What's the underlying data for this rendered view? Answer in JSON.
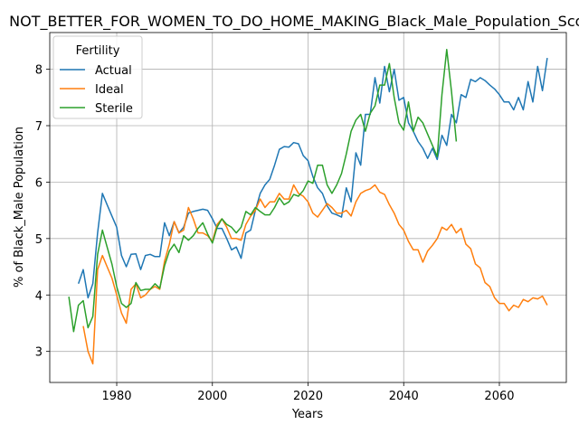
{
  "chart_data": {
    "type": "line",
    "title": "NOT_BETTER_FOR_WOMEN_TO_DO_HOME_MAKING_Black_Male_Population_Scores",
    "xlabel": "Years",
    "ylabel": "% of Black_Male Population",
    "xlim": [
      1966,
      2074
    ],
    "ylim": [
      2.45,
      8.65
    ],
    "xticks": [
      1980,
      2000,
      2020,
      2040,
      2060
    ],
    "yticks": [
      3,
      4,
      5,
      6,
      7,
      8
    ],
    "grid": true,
    "legend": {
      "title": "Fertility",
      "placement": "top-left"
    },
    "series": [
      {
        "name": "Actual",
        "color": "#1f77b4",
        "x": [
          1972,
          1973,
          1974,
          1975,
          1976,
          1977,
          1978,
          1979,
          1980,
          1981,
          1982,
          1983,
          1984,
          1985,
          1986,
          1987,
          1988,
          1989,
          1990,
          1991,
          1992,
          1993,
          1994,
          1995,
          1996,
          1997,
          1998,
          1999,
          2000,
          2001,
          2002,
          2003,
          2004,
          2005,
          2006,
          2007,
          2008,
          2009,
          2010,
          2011,
          2012,
          2013,
          2014,
          2015,
          2016,
          2017,
          2018,
          2019,
          2020,
          2021,
          2022,
          2023,
          2024,
          2025,
          2026,
          2027,
          2028,
          2029,
          2030,
          2031,
          2032,
          2033,
          2034,
          2035,
          2036,
          2037,
          2038,
          2039,
          2040,
          2041,
          2042,
          2043,
          2044,
          2045,
          2046,
          2047,
          2048,
          2049,
          2050,
          2051,
          2052,
          2053,
          2054,
          2055,
          2056,
          2057,
          2058,
          2059,
          2060,
          2061,
          2062,
          2063,
          2064,
          2065,
          2066,
          2067,
          2068,
          2069,
          2070
        ],
        "y": [
          4.2,
          4.45,
          3.95,
          4.2,
          5.1,
          5.8,
          5.6,
          5.4,
          5.2,
          4.7,
          4.5,
          4.72,
          4.73,
          4.45,
          4.7,
          4.72,
          4.68,
          4.68,
          5.28,
          5.05,
          5.3,
          5.1,
          5.2,
          5.45,
          5.48,
          5.5,
          5.52,
          5.5,
          5.35,
          5.18,
          5.18,
          5.0,
          4.8,
          4.85,
          4.65,
          5.1,
          5.15,
          5.5,
          5.8,
          5.95,
          6.05,
          6.3,
          6.58,
          6.63,
          6.62,
          6.7,
          6.68,
          6.47,
          6.38,
          6.1,
          5.9,
          5.8,
          5.58,
          5.45,
          5.42,
          5.38,
          5.9,
          5.65,
          6.52,
          6.3,
          7.2,
          7.2,
          7.85,
          7.4,
          8.05,
          7.6,
          8.0,
          7.45,
          7.5,
          7.05,
          6.9,
          6.72,
          6.6,
          6.42,
          6.6,
          6.4,
          6.83,
          6.65,
          7.2,
          7.05,
          7.55,
          7.5,
          7.82,
          7.78,
          7.85,
          7.8,
          7.72,
          7.65,
          7.55,
          7.42,
          7.42,
          7.28,
          7.5,
          7.28,
          7.78,
          7.42,
          8.05,
          7.62,
          8.2
        ]
      },
      {
        "name": "Ideal",
        "color": "#ff7f0e",
        "x": [
          1973,
          1974,
          1975,
          1976,
          1977,
          1978,
          1979,
          1980,
          1981,
          1982,
          1983,
          1984,
          1985,
          1986,
          1987,
          1988,
          1989,
          1990,
          1991,
          1992,
          1993,
          1994,
          1995,
          1996,
          1997,
          1998,
          1999,
          2000,
          2001,
          2002,
          2003,
          2004,
          2005,
          2006,
          2007,
          2008,
          2009,
          2010,
          2011,
          2012,
          2013,
          2014,
          2015,
          2016,
          2017,
          2018,
          2019,
          2020,
          2021,
          2022,
          2023,
          2024,
          2025,
          2026,
          2027,
          2028,
          2029,
          2030,
          2031,
          2032,
          2033,
          2034,
          2035,
          2036,
          2037,
          2038,
          2039,
          2040,
          2041,
          2042,
          2043,
          2044,
          2045,
          2046,
          2047,
          2048,
          2049,
          2050,
          2051,
          2052,
          2053,
          2054,
          2055,
          2056,
          2057,
          2058,
          2059,
          2060,
          2061,
          2062,
          2063,
          2064,
          2065,
          2066,
          2067,
          2068,
          2069,
          2070
        ],
        "y": [
          3.45,
          3.0,
          2.78,
          4.45,
          4.7,
          4.5,
          4.3,
          4.0,
          3.68,
          3.5,
          4.1,
          4.2,
          3.95,
          4.0,
          4.1,
          4.15,
          4.1,
          4.6,
          4.9,
          5.3,
          5.1,
          5.15,
          5.55,
          5.35,
          5.1,
          5.1,
          5.05,
          4.95,
          5.25,
          5.35,
          5.2,
          5.0,
          5.0,
          4.97,
          5.25,
          5.4,
          5.5,
          5.7,
          5.55,
          5.65,
          5.65,
          5.8,
          5.7,
          5.7,
          5.95,
          5.8,
          5.75,
          5.65,
          5.45,
          5.38,
          5.5,
          5.62,
          5.55,
          5.45,
          5.45,
          5.5,
          5.4,
          5.65,
          5.8,
          5.85,
          5.88,
          5.95,
          5.82,
          5.78,
          5.6,
          5.45,
          5.25,
          5.15,
          4.95,
          4.8,
          4.8,
          4.58,
          4.78,
          4.88,
          5.0,
          5.2,
          5.15,
          5.25,
          5.1,
          5.18,
          4.9,
          4.82,
          4.55,
          4.48,
          4.22,
          4.15,
          3.95,
          3.85,
          3.85,
          3.72,
          3.82,
          3.78,
          3.92,
          3.88,
          3.95,
          3.93,
          3.98,
          3.82
        ]
      },
      {
        "name": "Sterile",
        "color": "#2ca02c",
        "x": [
          1970,
          1971,
          1972,
          1973,
          1974,
          1975,
          1976,
          1977,
          1978,
          1979,
          1980,
          1981,
          1982,
          1983,
          1984,
          1985,
          1986,
          1987,
          1988,
          1989,
          1990,
          1991,
          1992,
          1993,
          1994,
          1995,
          1996,
          1997,
          1998,
          1999,
          2000,
          2001,
          2002,
          2003,
          2004,
          2005,
          2006,
          2007,
          2008,
          2009,
          2010,
          2011,
          2012,
          2013,
          2014,
          2015,
          2016,
          2017,
          2018,
          2019,
          2020,
          2021,
          2022,
          2023,
          2024,
          2025,
          2026,
          2027,
          2028,
          2029,
          2030,
          2031,
          2032,
          2033,
          2034,
          2035,
          2036,
          2037,
          2038,
          2039,
          2040,
          2041,
          2042,
          2043,
          2044,
          2045,
          2046,
          2047,
          2048,
          2049,
          2050,
          2051
        ],
        "y": [
          3.97,
          3.35,
          3.82,
          3.9,
          3.42,
          3.62,
          4.72,
          5.15,
          4.85,
          4.55,
          4.15,
          3.85,
          3.78,
          3.85,
          4.22,
          4.08,
          4.1,
          4.1,
          4.2,
          4.12,
          4.52,
          4.78,
          4.9,
          4.75,
          5.05,
          4.97,
          5.05,
          5.18,
          5.28,
          5.08,
          4.92,
          5.2,
          5.35,
          5.25,
          5.2,
          5.1,
          5.2,
          5.48,
          5.42,
          5.55,
          5.48,
          5.42,
          5.42,
          5.55,
          5.72,
          5.6,
          5.65,
          5.78,
          5.75,
          5.85,
          6.02,
          5.98,
          6.3,
          6.3,
          5.95,
          5.8,
          5.95,
          6.15,
          6.5,
          6.9,
          7.1,
          7.2,
          6.9,
          7.22,
          7.35,
          7.72,
          7.72,
          8.1,
          7.5,
          7.05,
          6.92,
          7.42,
          6.9,
          7.15,
          7.05,
          6.85,
          6.65,
          6.45,
          7.55,
          8.35,
          7.6,
          6.72
        ]
      }
    ]
  }
}
